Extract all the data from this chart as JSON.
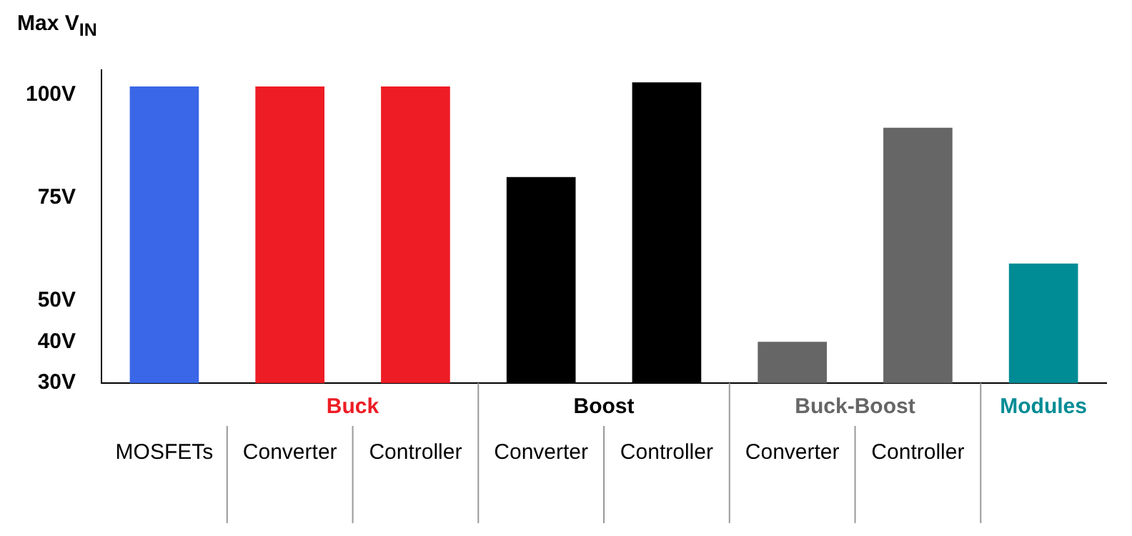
{
  "chart_data": {
    "type": "bar",
    "ylabel": "Max V$_{IN}$",
    "categories": [
      "MOSFETs",
      "Converter",
      "Controller",
      "Converter",
      "Controller",
      "Converter",
      "Controller",
      null
    ],
    "series": [
      {
        "color": "#3a66e8",
        "values": [
          102,
          null,
          null,
          null,
          null,
          null,
          null,
          null
        ]
      },
      {
        "name": "Buck",
        "color": "#ee1c25",
        "values": [
          null,
          102,
          102,
          null,
          null,
          null,
          null,
          null
        ]
      },
      {
        "name": "Boost",
        "color": "#000000",
        "values": [
          null,
          null,
          null,
          80,
          103,
          null,
          null,
          null
        ]
      },
      {
        "name": "Buck-Boost",
        "color": "#666666",
        "values": [
          null,
          null,
          null,
          null,
          null,
          40,
          92,
          null
        ]
      },
      {
        "name": "Modules",
        "color": "#008c95",
        "values": [
          null,
          null,
          null,
          null,
          null,
          null,
          null,
          59
        ]
      }
    ],
    "ylim": [
      30,
      106
    ],
    "yticks": [
      {
        "value": 30,
        "label": "30V"
      },
      {
        "value": 40,
        "label": "40V"
      },
      {
        "value": 50,
        "label": "50V"
      },
      {
        "value": 75,
        "label": "75V"
      },
      {
        "value": 100,
        "label": "100V"
      }
    ],
    "grid": false,
    "legend": false
  }
}
